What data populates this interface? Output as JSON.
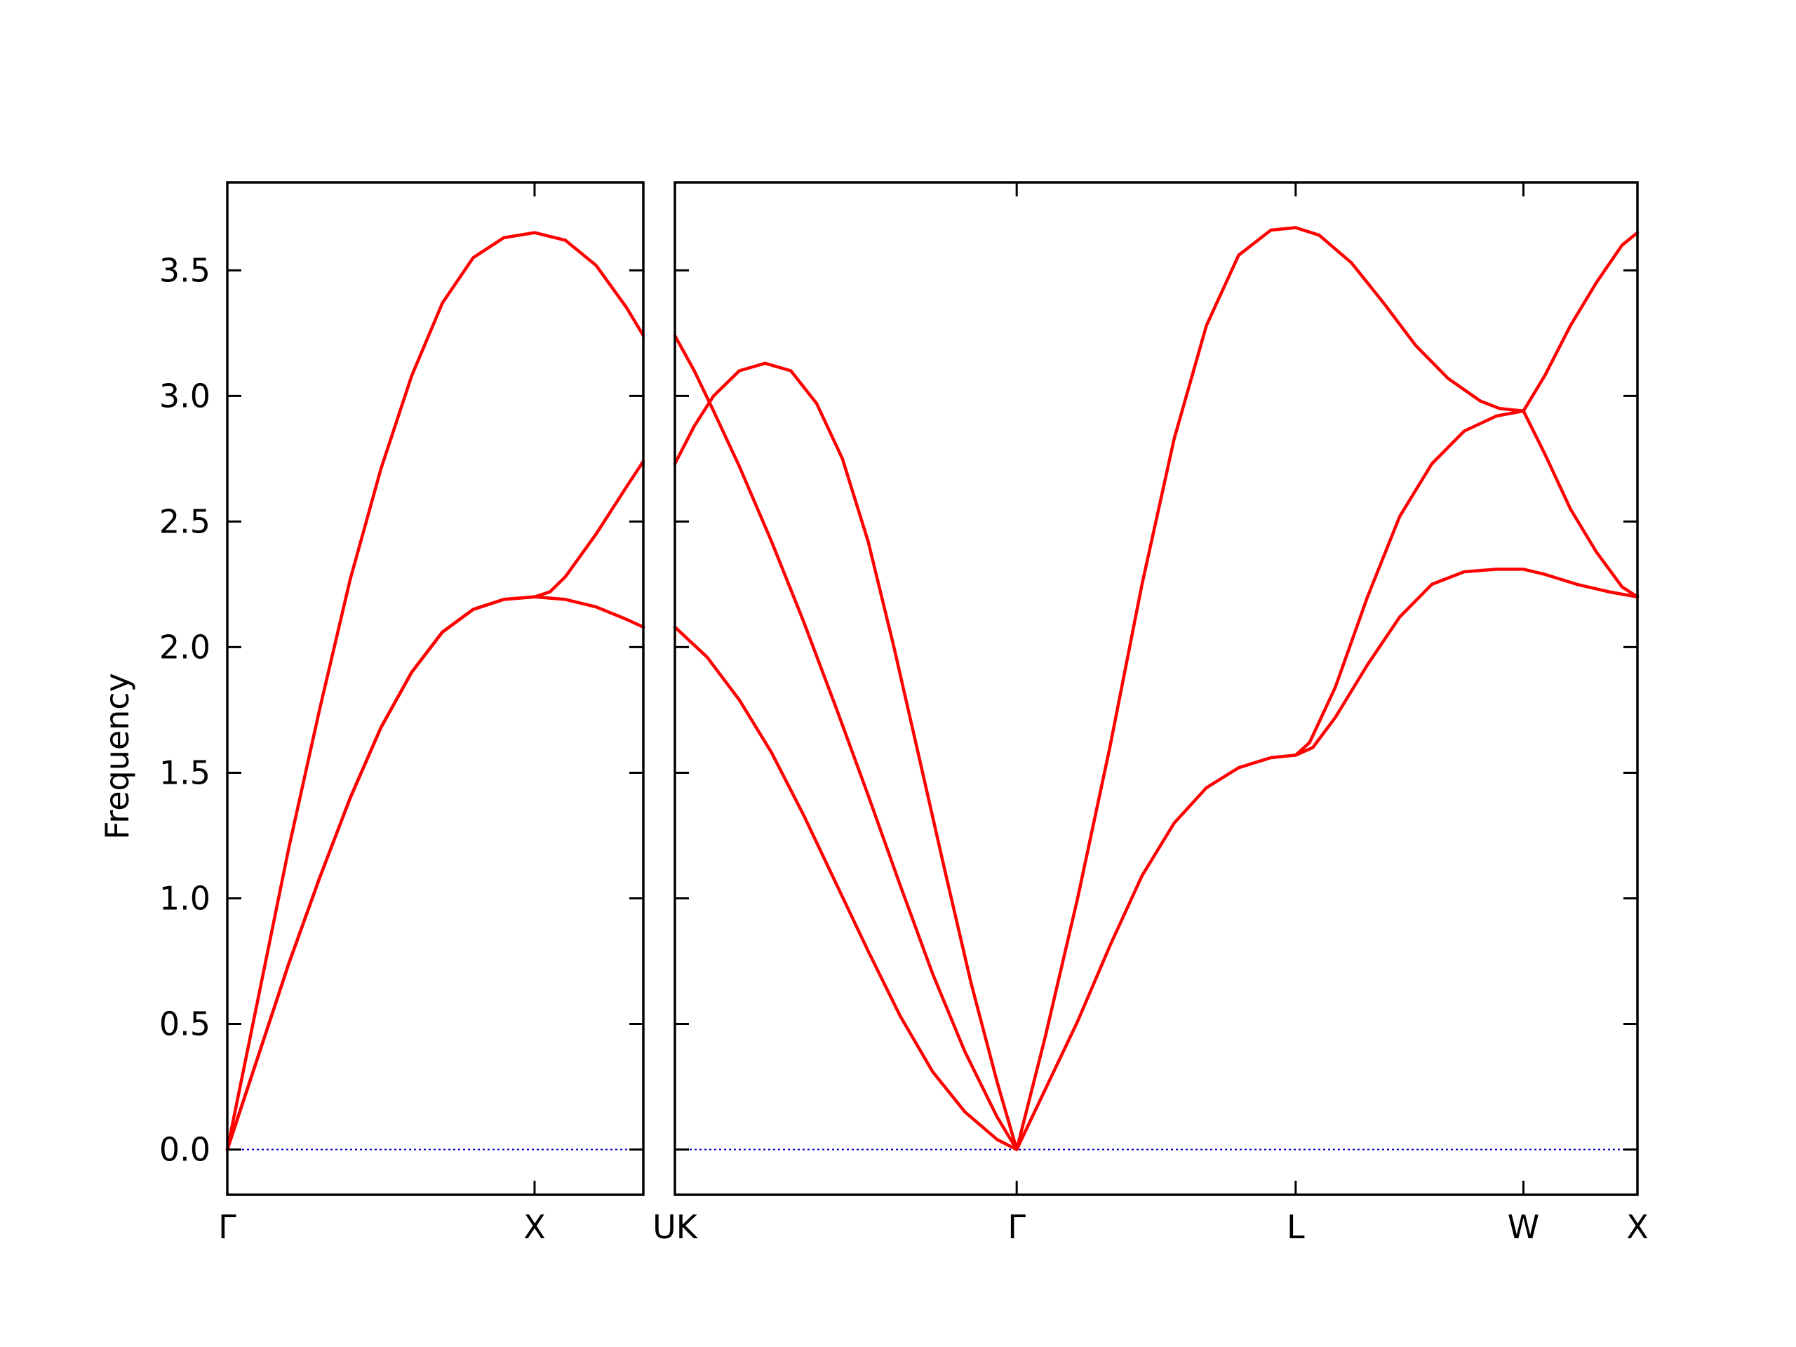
{
  "chart_data": {
    "type": "line",
    "ylabel": "Frequency",
    "ylim": [
      -0.18,
      3.85
    ],
    "yticks": [
      "0.0",
      "0.5",
      "1.0",
      "1.5",
      "2.0",
      "2.5",
      "3.0",
      "3.5"
    ],
    "zero_line": true,
    "colors": {
      "band": "#ff0000",
      "zero_line": "#0000cc",
      "frame": "#000000"
    },
    "panels": [
      {
        "path_labels": [
          "Γ",
          "X",
          "U"
        ],
        "x_labels": [
          "Γ",
          "X",
          ""
        ],
        "x": [
          0,
          1,
          1.354
        ],
        "series": [
          {
            "values": [
              [
                0.0,
                0.0
              ],
              [
                0.1,
                0.6
              ],
              [
                0.2,
                1.2
              ],
              [
                0.3,
                1.75
              ],
              [
                0.4,
                2.27
              ],
              [
                0.5,
                2.71
              ],
              [
                0.6,
                3.08
              ],
              [
                0.7,
                3.37
              ],
              [
                0.8,
                3.55
              ],
              [
                0.9,
                3.63
              ],
              [
                1.0,
                3.65
              ],
              [
                1.1,
                3.62
              ],
              [
                1.2,
                3.52
              ],
              [
                1.3,
                3.35
              ],
              [
                1.354,
                3.24
              ]
            ]
          },
          {
            "values": [
              [
                0.0,
                0.0
              ],
              [
                0.1,
                0.37
              ],
              [
                0.2,
                0.74
              ],
              [
                0.3,
                1.08
              ],
              [
                0.4,
                1.4
              ],
              [
                0.5,
                1.68
              ],
              [
                0.6,
                1.9
              ],
              [
                0.7,
                2.06
              ],
              [
                0.8,
                2.15
              ],
              [
                0.9,
                2.19
              ],
              [
                1.0,
                2.2
              ],
              [
                1.1,
                2.19
              ],
              [
                1.2,
                2.16
              ],
              [
                1.3,
                2.11
              ],
              [
                1.354,
                2.08
              ]
            ]
          },
          {
            "values": [
              [
                0.0,
                0.0
              ],
              [
                0.1,
                0.37
              ],
              [
                0.2,
                0.74
              ],
              [
                0.3,
                1.08
              ],
              [
                0.4,
                1.4
              ],
              [
                0.5,
                1.68
              ],
              [
                0.6,
                1.9
              ],
              [
                0.7,
                2.06
              ],
              [
                0.8,
                2.15
              ],
              [
                0.9,
                2.19
              ],
              [
                1.0,
                2.2
              ],
              [
                1.05,
                2.22
              ],
              [
                1.1,
                2.28
              ],
              [
                1.2,
                2.45
              ],
              [
                1.3,
                2.64
              ],
              [
                1.354,
                2.74
              ]
            ]
          }
        ]
      },
      {
        "path_labels": [
          "K",
          "Γ",
          "L",
          "W",
          "X"
        ],
        "x_labels": [
          "UK",
          "Γ",
          "L",
          "W",
          "X"
        ],
        "x": [
          0,
          1.061,
          1.927,
          2.634,
          2.988
        ],
        "series": [
          {
            "values": [
              [
                0.0,
                2.73
              ],
              [
                0.06,
                2.88
              ],
              [
                0.12,
                3.0
              ],
              [
                0.2,
                3.1
              ],
              [
                0.28,
                3.13
              ],
              [
                0.36,
                3.1
              ],
              [
                0.44,
                2.97
              ],
              [
                0.52,
                2.75
              ],
              [
                0.6,
                2.42
              ],
              [
                0.68,
                2.0
              ],
              [
                0.76,
                1.55
              ],
              [
                0.84,
                1.1
              ],
              [
                0.92,
                0.66
              ],
              [
                1.0,
                0.27
              ],
              [
                1.061,
                0.0
              ]
            ]
          },
          {
            "values": [
              [
                0.0,
                3.24
              ],
              [
                0.06,
                3.1
              ],
              [
                0.12,
                2.94
              ],
              [
                0.2,
                2.72
              ],
              [
                0.3,
                2.42
              ],
              [
                0.4,
                2.1
              ],
              [
                0.5,
                1.76
              ],
              [
                0.6,
                1.41
              ],
              [
                0.7,
                1.05
              ],
              [
                0.8,
                0.7
              ],
              [
                0.9,
                0.39
              ],
              [
                1.0,
                0.13
              ],
              [
                1.061,
                0.0
              ]
            ]
          },
          {
            "values": [
              [
                0.0,
                2.08
              ],
              [
                0.1,
                1.96
              ],
              [
                0.2,
                1.79
              ],
              [
                0.3,
                1.58
              ],
              [
                0.4,
                1.33
              ],
              [
                0.5,
                1.06
              ],
              [
                0.6,
                0.79
              ],
              [
                0.7,
                0.53
              ],
              [
                0.8,
                0.31
              ],
              [
                0.9,
                0.15
              ],
              [
                1.0,
                0.04
              ],
              [
                1.061,
                0.0
              ]
            ]
          },
          {
            "values": [
              [
                1.061,
                0.0
              ],
              [
                1.15,
                0.45
              ],
              [
                1.25,
                1.0
              ],
              [
                1.35,
                1.6
              ],
              [
                1.45,
                2.25
              ],
              [
                1.55,
                2.83
              ],
              [
                1.65,
                3.28
              ],
              [
                1.75,
                3.56
              ],
              [
                1.85,
                3.66
              ],
              [
                1.927,
                3.67
              ],
              [
                2.0,
                3.64
              ],
              [
                2.1,
                3.53
              ],
              [
                2.2,
                3.37
              ],
              [
                2.3,
                3.2
              ],
              [
                2.4,
                3.07
              ],
              [
                2.5,
                2.98
              ],
              [
                2.56,
                2.95
              ],
              [
                2.634,
                2.94
              ],
              [
                2.7,
                3.08
              ],
              [
                2.78,
                3.28
              ],
              [
                2.86,
                3.45
              ],
              [
                2.94,
                3.6
              ],
              [
                2.988,
                3.65
              ]
            ]
          },
          {
            "values": [
              [
                1.061,
                0.0
              ],
              [
                1.15,
                0.24
              ],
              [
                1.25,
                0.51
              ],
              [
                1.35,
                0.81
              ],
              [
                1.45,
                1.09
              ],
              [
                1.55,
                1.3
              ],
              [
                1.65,
                1.44
              ],
              [
                1.75,
                1.52
              ],
              [
                1.85,
                1.56
              ],
              [
                1.927,
                1.57
              ],
              [
                1.98,
                1.6
              ],
              [
                2.05,
                1.72
              ],
              [
                2.15,
                1.93
              ],
              [
                2.25,
                2.12
              ],
              [
                2.35,
                2.25
              ],
              [
                2.45,
                2.3
              ],
              [
                2.55,
                2.31
              ],
              [
                2.634,
                2.31
              ],
              [
                2.7,
                2.29
              ],
              [
                2.8,
                2.25
              ],
              [
                2.9,
                2.22
              ],
              [
                2.988,
                2.2
              ]
            ]
          },
          {
            "values": [
              [
                1.927,
                1.57
              ],
              [
                1.97,
                1.62
              ],
              [
                2.05,
                1.84
              ],
              [
                2.15,
                2.2
              ],
              [
                2.25,
                2.52
              ],
              [
                2.35,
                2.73
              ],
              [
                2.45,
                2.86
              ],
              [
                2.55,
                2.92
              ],
              [
                2.634,
                2.94
              ],
              [
                2.7,
                2.77
              ],
              [
                2.78,
                2.55
              ],
              [
                2.86,
                2.38
              ],
              [
                2.94,
                2.24
              ],
              [
                2.988,
                2.2
              ]
            ]
          }
        ]
      }
    ]
  }
}
